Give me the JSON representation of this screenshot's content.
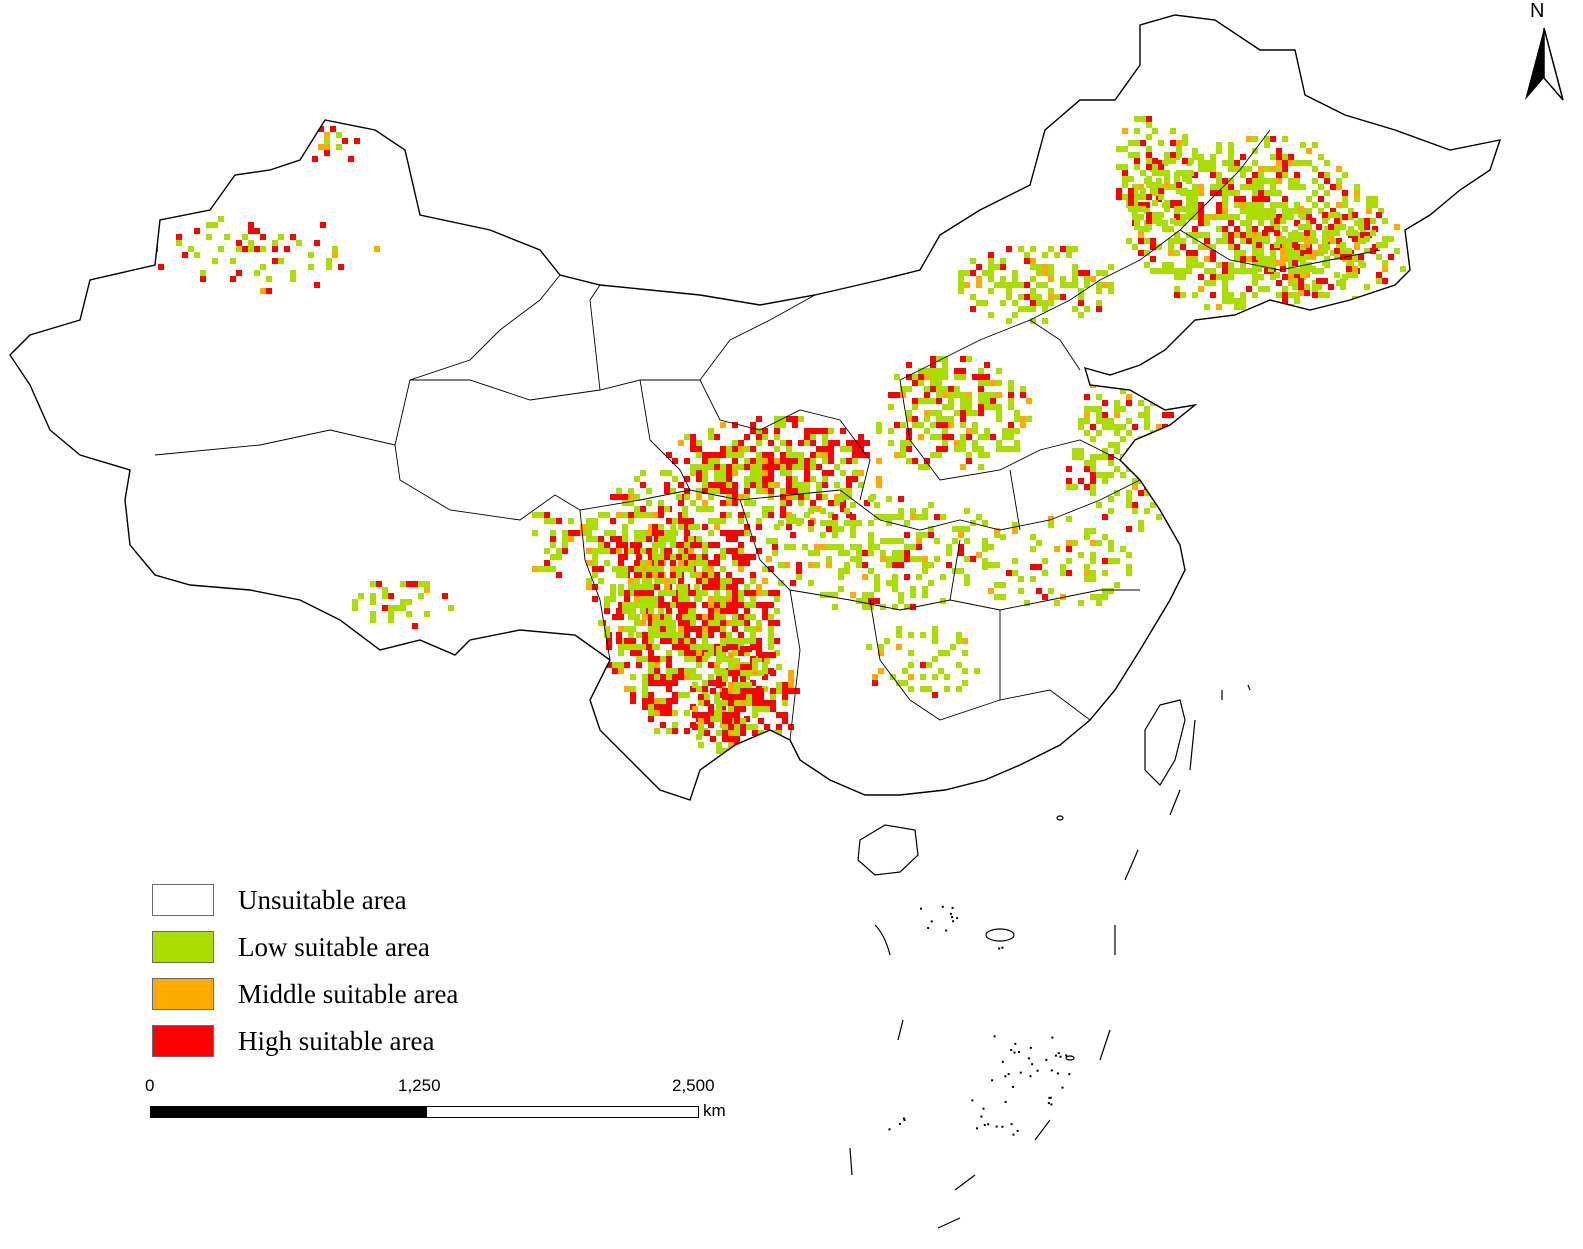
{
  "map": {
    "north_label": "N",
    "colors": {
      "unsuitable": "#ffffff",
      "low": "#aadd00",
      "middle": "#ffaa00",
      "high": "#ff0000",
      "boundary": "#000000"
    }
  },
  "legend": {
    "items": [
      {
        "label": "Unsuitable area",
        "color": "#ffffff"
      },
      {
        "label": "Low suitable area",
        "color": "#aadd00"
      },
      {
        "label": "Middle suitable area",
        "color": "#ffaa00"
      },
      {
        "label": "High suitable area",
        "color": "#ff0000"
      }
    ]
  },
  "scale_bar": {
    "ticks": [
      "0",
      "1,250",
      "2,500"
    ],
    "unit": "km"
  }
}
